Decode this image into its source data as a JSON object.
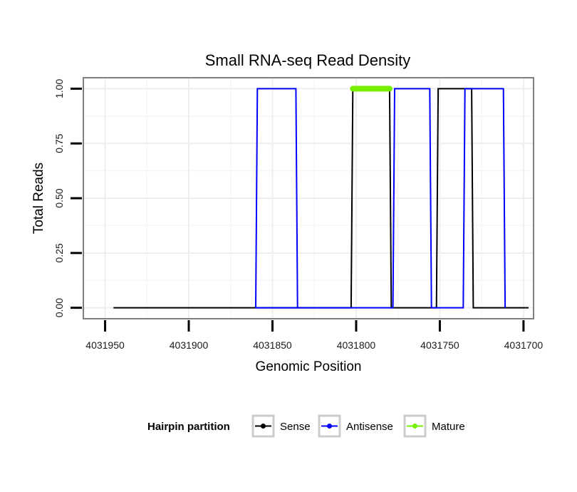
{
  "chart_data": {
    "type": "line",
    "title": "Small RNA-seq Read Density",
    "xlabel": "Genomic Position",
    "ylabel": "Total Reads",
    "xlim": [
      4031963,
      4031694
    ],
    "x_reversed": true,
    "ylim": [
      -0.05,
      1.05
    ],
    "grid": true,
    "x_ticks": [
      4031950,
      4031900,
      4031850,
      4031800,
      4031750,
      4031700
    ],
    "x_tick_labels": [
      "4031950",
      "4031900",
      "4031850",
      "4031800",
      "4031750",
      "4031700"
    ],
    "y_ticks": [
      0,
      0.25,
      0.5,
      0.75,
      1
    ],
    "y_tick_labels": [
      "0.00",
      "0.25",
      "0.50",
      "0.75",
      "1.00"
    ],
    "legend": {
      "title": "Hairpin partition",
      "placement": "bottom",
      "entries": [
        "Sense",
        "Antisense",
        "Mature"
      ]
    },
    "series": [
      {
        "name": "Sense",
        "color": "#000000",
        "x": [
          4031945,
          4031803,
          4031802,
          4031780,
          4031779,
          4031752,
          4031751,
          4031731,
          4031730,
          4031697
        ],
        "y": [
          0,
          0,
          1,
          1,
          0,
          0,
          1,
          1,
          0,
          0
        ]
      },
      {
        "name": "Antisense",
        "color": "#0000ff",
        "x": [
          4031803,
          4031860,
          4031859,
          4031836,
          4031835,
          4031803,
          4031802,
          4031778,
          4031777,
          4031756,
          4031755,
          4031736,
          4031735,
          4031712,
          4031711
        ],
        "y": [
          0,
          0,
          1,
          1,
          0,
          0,
          0,
          0,
          1,
          1,
          0,
          0,
          1,
          1,
          0
        ]
      },
      {
        "name": "Mature",
        "color": "#76ee00",
        "x": [
          4031802,
          4031780
        ],
        "y": [
          1,
          1
        ]
      }
    ]
  }
}
